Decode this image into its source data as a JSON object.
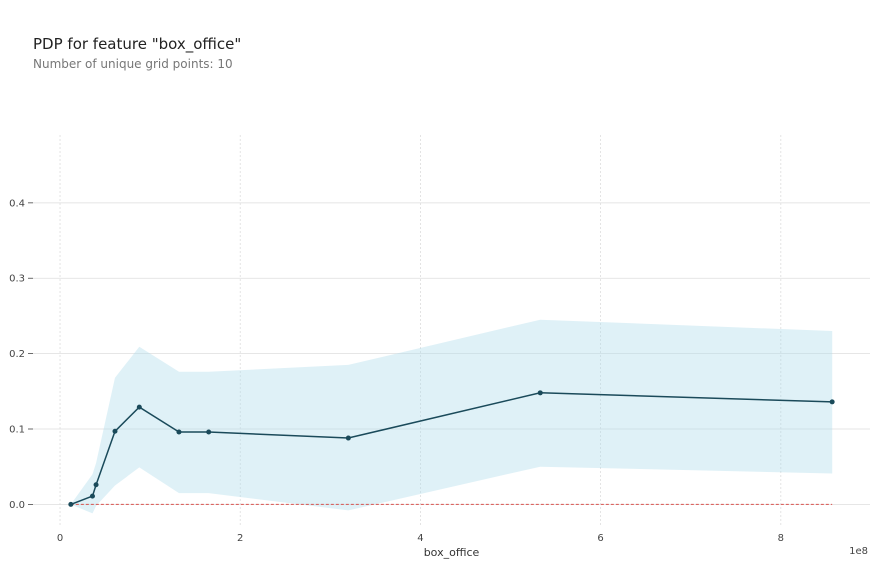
{
  "title": "PDP for feature \"box_office\"",
  "subtitle": "Number of unique grid points: 10",
  "chart_data": {
    "type": "line",
    "xlabel": "box_office",
    "x_offset_label": "1e8",
    "xlim": [
      -0.3,
      8.99
    ],
    "ylim": [
      -0.03,
      0.49
    ],
    "x_ticks": [
      0,
      2,
      4,
      6,
      8
    ],
    "x_tick_labels": [
      "0",
      "2",
      "4",
      "6",
      "8"
    ],
    "y_ticks": [
      0.0,
      0.1,
      0.2,
      0.3,
      0.4
    ],
    "y_tick_labels": [
      "0.0",
      "0.1",
      "0.2",
      "0.3",
      "0.4"
    ],
    "grid": true,
    "x": [
      0.12,
      0.36,
      0.4,
      0.61,
      0.88,
      1.32,
      1.65,
      3.2,
      5.33,
      8.57
    ],
    "values": [
      0.0,
      0.011,
      0.026,
      0.097,
      0.129,
      0.096,
      0.096,
      0.088,
      0.148,
      0.136
    ],
    "upper": [
      0.0,
      0.04,
      0.055,
      0.168,
      0.209,
      0.176,
      0.176,
      0.185,
      0.245,
      0.23
    ],
    "lower": [
      0.0,
      -0.012,
      -0.002,
      0.025,
      0.049,
      0.015,
      0.015,
      -0.008,
      0.05,
      0.041
    ],
    "baseline": 0.0,
    "colors": {
      "line": "#1a4a5a",
      "band": "#aedbea",
      "baseline": "#d9534f",
      "grid": "#dddddd"
    }
  }
}
